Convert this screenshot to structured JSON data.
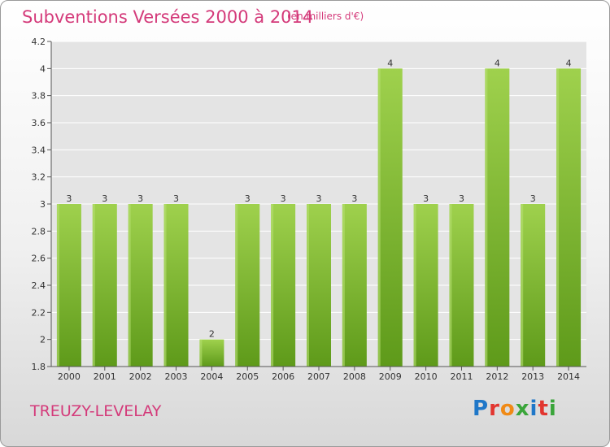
{
  "header": {
    "title": "Subventions Versées 2000 à 2014",
    "unit_note": "(en milliers d'€)"
  },
  "footer": {
    "place": "TREUZY-LEVELAY",
    "logo": "Proxiti"
  },
  "colors": {
    "title": "#d43a7a",
    "bar_top": "#9fd14d",
    "bar_bottom": "#5e9a1a"
  },
  "chart_data": {
    "type": "bar",
    "title": "Subventions Versées 2000 à 2014",
    "subtitle": "(en milliers d'€)",
    "categories": [
      "2000",
      "2001",
      "2002",
      "2003",
      "2004",
      "2005",
      "2006",
      "2007",
      "2008",
      "2009",
      "2010",
      "2011",
      "2012",
      "2013",
      "2014"
    ],
    "values": [
      3,
      3,
      3,
      3,
      2,
      3,
      3,
      3,
      3,
      4,
      3,
      3,
      4,
      3,
      4
    ],
    "data_labels": [
      "3",
      "3",
      "3",
      "3",
      "2",
      "3",
      "3",
      "3",
      "3",
      "4",
      "3",
      "3",
      "4",
      "3",
      "4"
    ],
    "y_ticks": [
      "1.8",
      "2",
      "2.2",
      "2.4",
      "2.6",
      "2.8",
      "3",
      "3.2",
      "3.4",
      "3.6",
      "3.8",
      "4",
      "4.2"
    ],
    "ylim": [
      1.8,
      4.2
    ],
    "grid": true,
    "xlabel": "",
    "ylabel": ""
  }
}
